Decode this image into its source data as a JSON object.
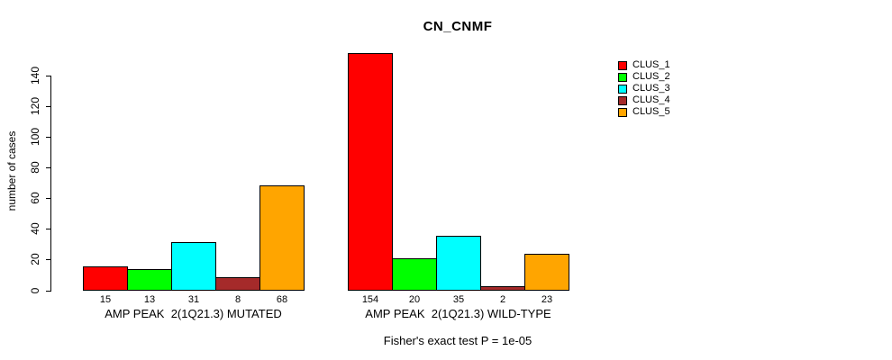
{
  "chart_data": {
    "type": "bar",
    "title": "CN_CNMF",
    "ylabel": "number of cases",
    "categories": [
      "AMP PEAK  2(1Q21.3) MUTATED",
      "AMP PEAK  2(1Q21.3) WILD-TYPE"
    ],
    "series": [
      {
        "name": "CLUS_1",
        "color": "#FF0000",
        "values": [
          15,
          154
        ]
      },
      {
        "name": "CLUS_2",
        "color": "#00FF00",
        "values": [
          13,
          20
        ]
      },
      {
        "name": "CLUS_3",
        "color": "#00FFFF",
        "values": [
          31,
          35
        ]
      },
      {
        "name": "CLUS_4",
        "color": "#A52A2A",
        "values": [
          8,
          2
        ]
      },
      {
        "name": "CLUS_5",
        "color": "#FFA500",
        "values": [
          68,
          23
        ]
      }
    ],
    "bar_value_labels": [
      [
        15,
        13,
        31,
        8,
        68
      ],
      [
        154,
        20,
        35,
        2,
        23
      ]
    ],
    "yticks": [
      0,
      20,
      40,
      60,
      80,
      100,
      120,
      140
    ],
    "ylim": [
      0,
      154
    ],
    "grid": false,
    "legend_position": "top-right",
    "annotation": "Fisher's exact test P = 1e-05"
  }
}
